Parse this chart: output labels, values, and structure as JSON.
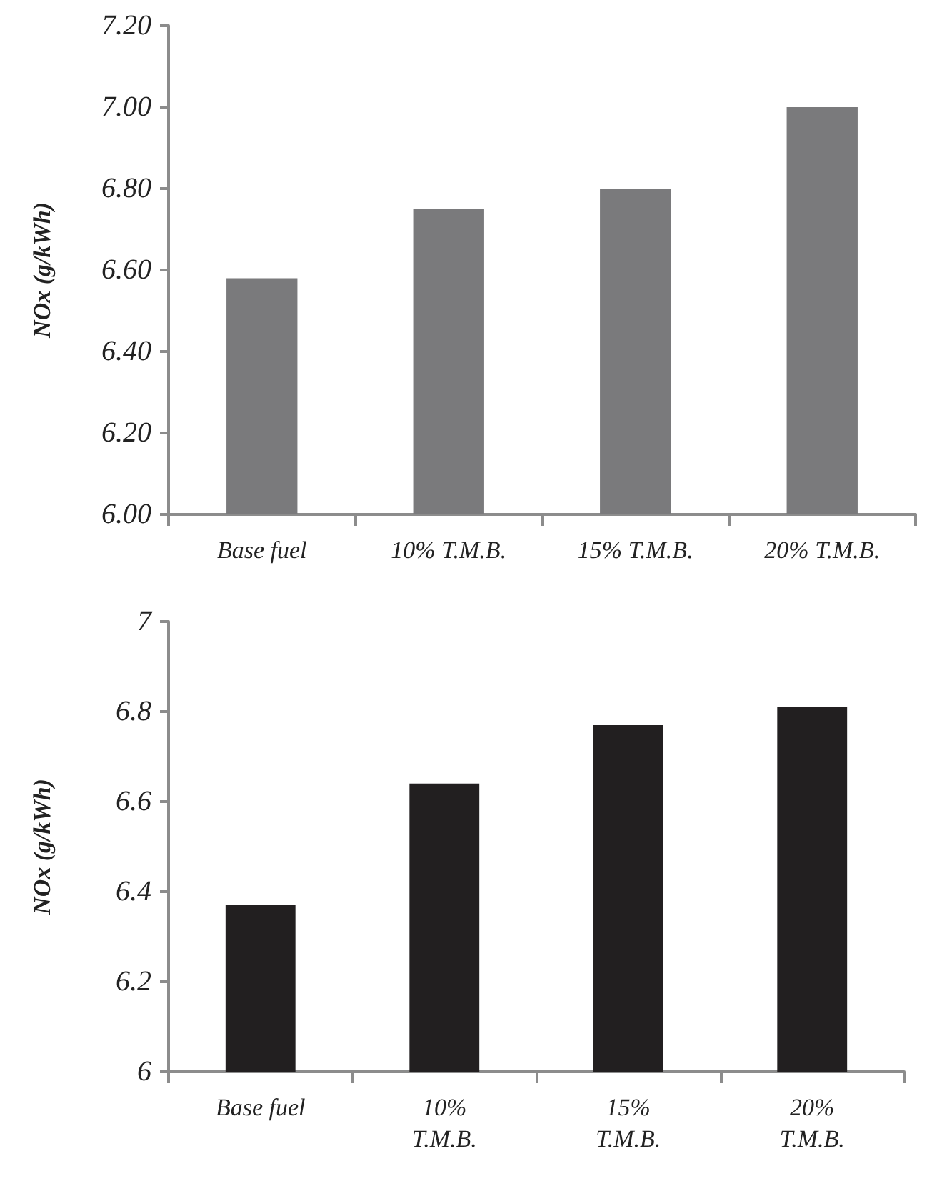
{
  "chart_data": [
    {
      "type": "bar",
      "ylabel": "NOx (g/kWh)",
      "categories": [
        "Base fuel",
        "10% T.M.B.",
        "15% T.M.B.",
        "20% T.M.B."
      ],
      "values": [
        6.58,
        6.75,
        6.8,
        7.0
      ],
      "color": "#7a7a7c",
      "ylim": [
        6,
        7.2
      ],
      "yticks": [
        {
          "value": 6,
          "label": "6.00"
        },
        {
          "value": 6.2,
          "label": "6.20"
        },
        {
          "value": 6.4,
          "label": "6.40"
        },
        {
          "value": 6.6,
          "label": "6.60"
        },
        {
          "value": 6.8,
          "label": "6.80"
        },
        {
          "value": 7,
          "label": "7.00"
        },
        {
          "value": 7.2,
          "label": "7.20"
        }
      ]
    },
    {
      "type": "bar",
      "ylabel": "NOx (g/kWh)",
      "categories": [
        "Base fuel",
        "10%\nT.M.B.",
        "15%\nT.M.B.",
        "20%\nT.M.B."
      ],
      "values": [
        6.37,
        6.64,
        6.77,
        6.81
      ],
      "color": "#221f20",
      "ylim": [
        6,
        7
      ],
      "yticks": [
        6,
        6.2,
        6.4,
        6.6,
        6.8,
        7
      ]
    }
  ]
}
